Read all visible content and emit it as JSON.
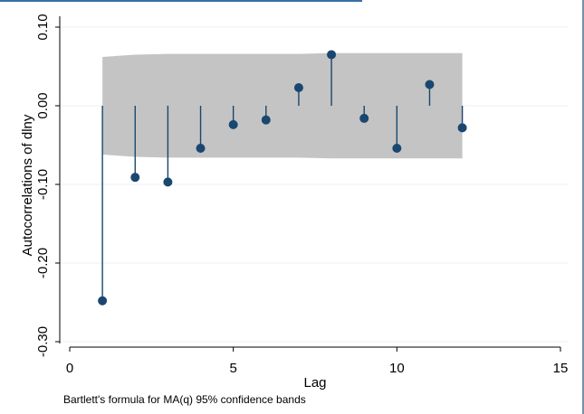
{
  "chart_data": {
    "type": "stem",
    "title": "",
    "xlabel": "Lag",
    "ylabel": "Autocorrelations of dlny",
    "xlim": [
      0,
      15
    ],
    "ylim": [
      -0.3,
      0.1
    ],
    "xticks": [
      0,
      5,
      10,
      15
    ],
    "yticks": [
      -0.3,
      -0.2,
      -0.1,
      0.0,
      0.1
    ],
    "ytick_labels": [
      "-0.30",
      "-0.20",
      "-0.10",
      "0.00",
      "0.10"
    ],
    "xtick_labels": [
      "0",
      "5",
      "10",
      "15"
    ],
    "grid": true,
    "note": "Bartlett's formula for MA(q) 95% confidence bands",
    "series": [
      {
        "name": "Autocorrelations of dlny",
        "lags": [
          1,
          2,
          3,
          4,
          5,
          6,
          7,
          8,
          9,
          10,
          11,
          12
        ],
        "values": [
          -0.248,
          -0.091,
          -0.097,
          -0.054,
          -0.024,
          -0.018,
          0.023,
          0.065,
          -0.016,
          -0.054,
          0.027,
          -0.028
        ]
      }
    ],
    "confidence_band": {
      "lags": [
        1,
        2,
        3,
        4,
        5,
        6,
        7,
        8,
        9,
        10,
        11,
        12
      ],
      "upper": [
        0.062,
        0.065,
        0.066,
        0.066,
        0.066,
        0.066,
        0.066,
        0.067,
        0.067,
        0.067,
        0.067,
        0.067
      ],
      "lower": [
        -0.062,
        -0.065,
        -0.066,
        -0.066,
        -0.066,
        -0.066,
        -0.066,
        -0.067,
        -0.067,
        -0.067,
        -0.067,
        -0.067
      ]
    },
    "colors": {
      "band": "#c4c4c4",
      "stem": "#1a476f",
      "marker": "#1a476f",
      "grid": "#eaf2f3",
      "axis": "#000000"
    }
  }
}
